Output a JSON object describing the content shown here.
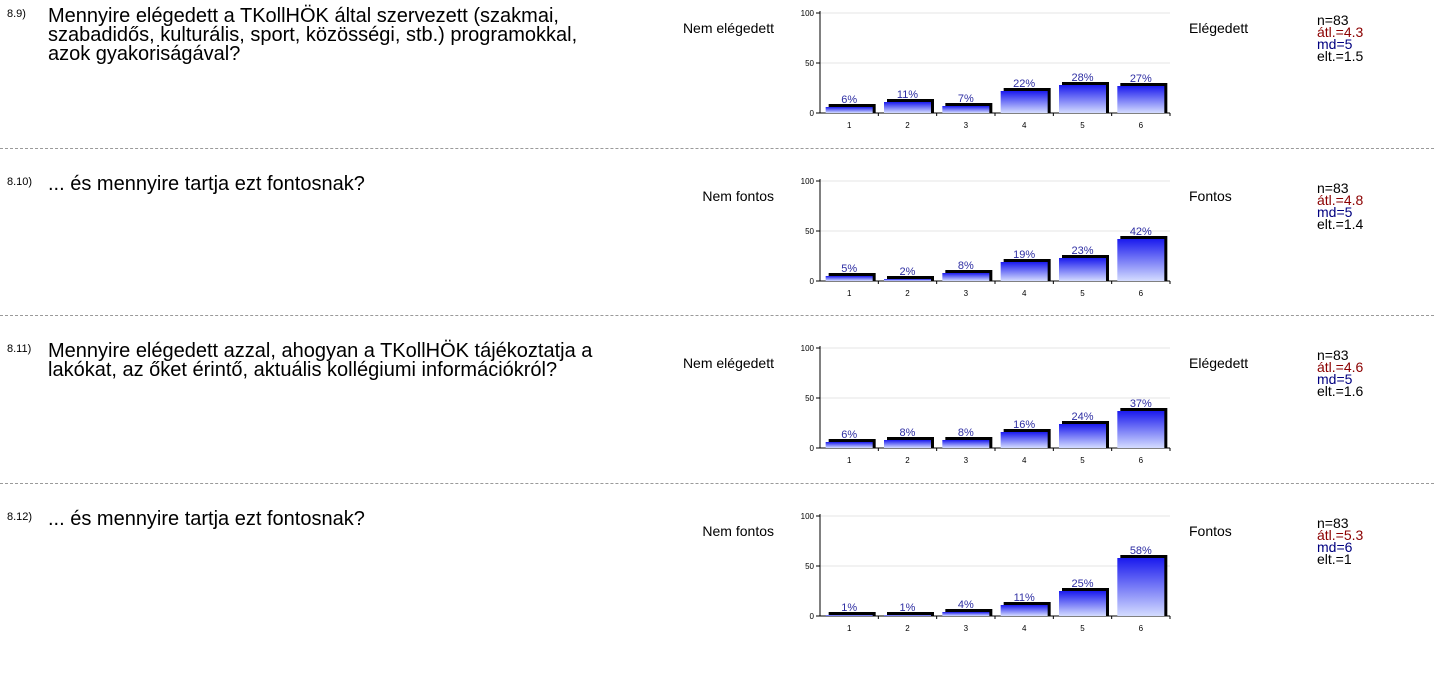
{
  "questions": [
    {
      "number": "8.9)",
      "text": "Mennyire elégedett a TKollHÖK által szervezett (szakmai, szabadidős, kulturális, sport, közösségi, stb.) programokkal, azok gyakoriságával?",
      "left_label": "Nem elégedett",
      "right_label": "Elégedett",
      "stats": {
        "n": "n=83",
        "avg": "átl.=4.3",
        "md": "md=5",
        "elt": "elt.=1.5"
      }
    },
    {
      "number": "8.10)",
      "text": "... és mennyire tartja ezt fontosnak?",
      "left_label": "Nem fontos",
      "right_label": "Fontos",
      "stats": {
        "n": "n=83",
        "avg": "átl.=4.8",
        "md": "md=5",
        "elt": "elt.=1.4"
      }
    },
    {
      "number": "8.11)",
      "text": "Mennyire elégedett azzal, ahogyan a TKollHÖK tájékoztatja a lakókat, az őket érintő, aktuális kollégiumi információkról?",
      "left_label": "Nem elégedett",
      "right_label": "Elégedett",
      "stats": {
        "n": "n=83",
        "avg": "átl.=4.6",
        "md": "md=5",
        "elt": "elt.=1.6"
      }
    },
    {
      "number": "8.12)",
      "text": "... és mennyire tartja ezt fontosnak?",
      "left_label": "Nem fontos",
      "right_label": "Fontos",
      "stats": {
        "n": "n=83",
        "avg": "átl.=5.3",
        "md": "md=6",
        "elt": "elt.=1"
      }
    }
  ],
  "chart_data": [
    {
      "type": "bar",
      "categories": [
        "1",
        "2",
        "3",
        "4",
        "5",
        "6"
      ],
      "values": [
        6,
        11,
        7,
        22,
        28,
        27
      ],
      "labels": [
        "6%",
        "11%",
        "7%",
        "22%",
        "28%",
        "27%"
      ],
      "yticks": [
        "0",
        "50",
        "100"
      ],
      "ylim": [
        0,
        100
      ]
    },
    {
      "type": "bar",
      "categories": [
        "1",
        "2",
        "3",
        "4",
        "5",
        "6"
      ],
      "values": [
        5,
        2,
        8,
        19,
        23,
        42
      ],
      "labels": [
        "5%",
        "2%",
        "8%",
        "19%",
        "23%",
        "42%"
      ],
      "yticks": [
        "0",
        "50",
        "100"
      ],
      "ylim": [
        0,
        100
      ]
    },
    {
      "type": "bar",
      "categories": [
        "1",
        "2",
        "3",
        "4",
        "5",
        "6"
      ],
      "values": [
        6,
        8,
        8,
        16,
        24,
        37
      ],
      "labels": [
        "6%",
        "8%",
        "8%",
        "16%",
        "24%",
        "37%"
      ],
      "yticks": [
        "0",
        "50",
        "100"
      ],
      "ylim": [
        0,
        100
      ]
    },
    {
      "type": "bar",
      "categories": [
        "1",
        "2",
        "3",
        "4",
        "5",
        "6"
      ],
      "values": [
        1,
        1,
        4,
        11,
        25,
        58
      ],
      "labels": [
        "1%",
        "1%",
        "4%",
        "11%",
        "25%",
        "58%"
      ],
      "yticks": [
        "0",
        "50",
        "100"
      ],
      "ylim": [
        0,
        100
      ]
    }
  ]
}
